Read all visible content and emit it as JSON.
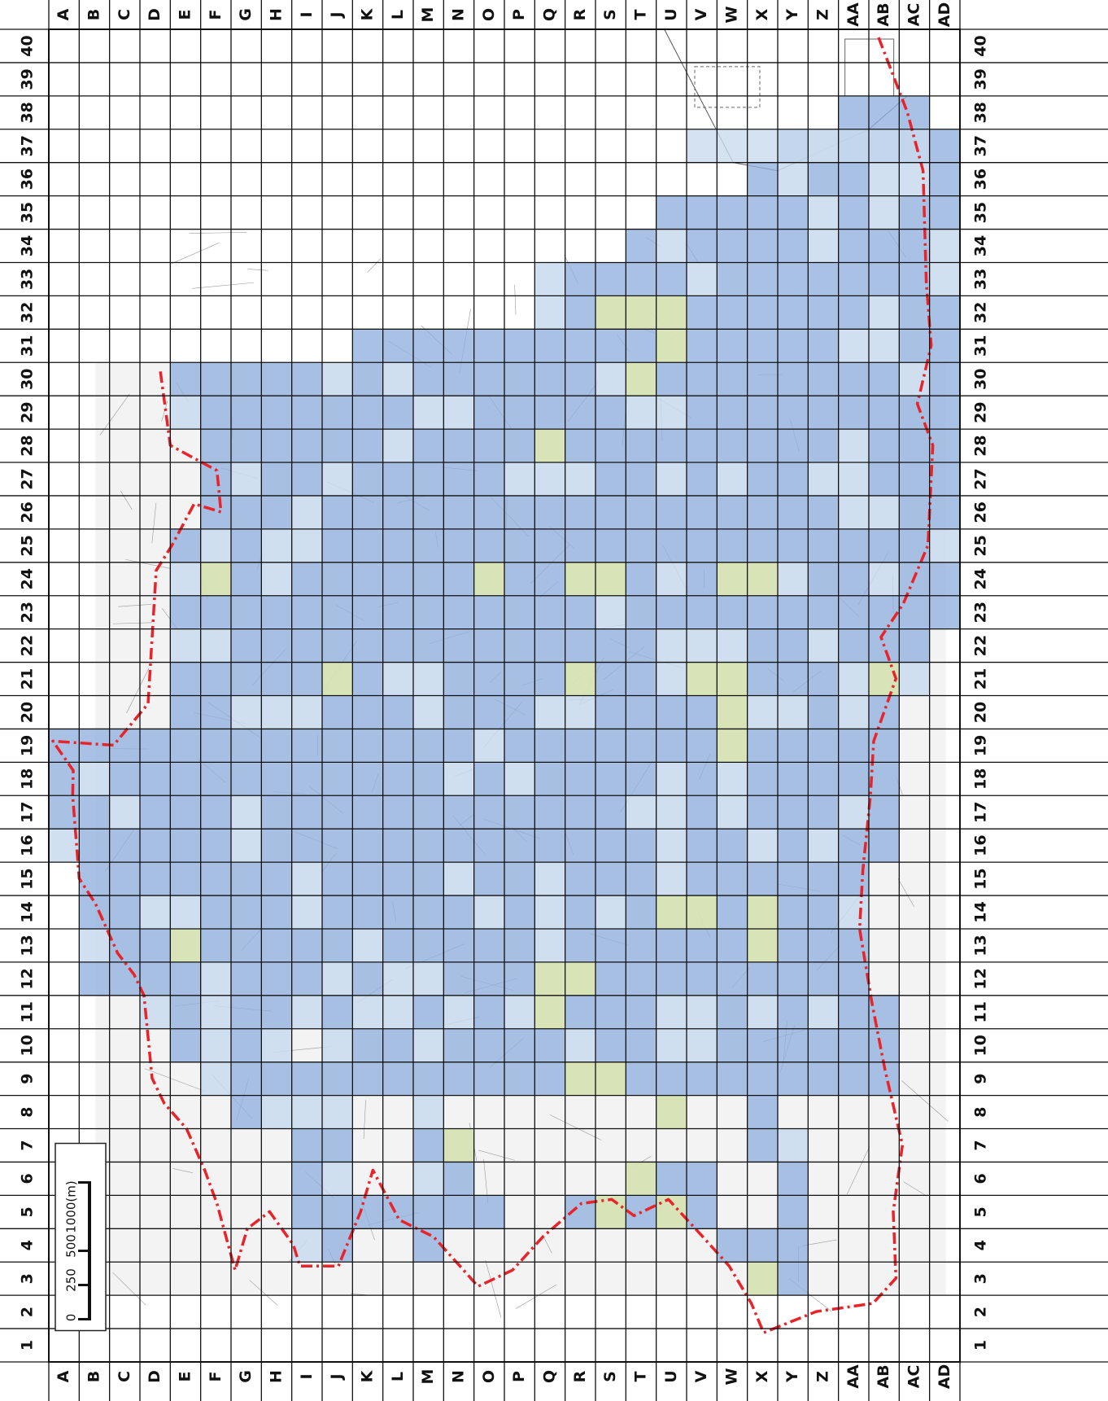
{
  "map": {
    "column_letters": [
      "A",
      "B",
      "C",
      "D",
      "E",
      "F",
      "G",
      "H",
      "I",
      "J",
      "K",
      "L",
      "M",
      "N",
      "O",
      "P",
      "Q",
      "R",
      "S",
      "T",
      "U",
      "V",
      "W",
      "X",
      "Y",
      "Z",
      "AA",
      "AB",
      "AC",
      "AD"
    ],
    "row_numbers": [
      "1",
      "2",
      "3",
      "4",
      "5",
      "6",
      "7",
      "8",
      "9",
      "10",
      "11",
      "12",
      "13",
      "14",
      "15",
      "16",
      "17",
      "18",
      "19",
      "20",
      "21",
      "22",
      "23",
      "24",
      "25",
      "26",
      "27",
      "28",
      "29",
      "30",
      "31",
      "32",
      "33",
      "34",
      "35",
      "36",
      "37",
      "38",
      "39",
      "40"
    ],
    "scale_bar": {
      "unit_label": "1000(m)",
      "tick_labels": [
        "0",
        "250",
        "500"
      ]
    },
    "colors": {
      "coverage_blue": "#8fb0dd",
      "light_blue": "#c9dbef",
      "yellow_green": "#d6e3b4",
      "green": "#7cbb5f",
      "boundary_red": "#e8242a",
      "grid_line": "#111111"
    }
  }
}
